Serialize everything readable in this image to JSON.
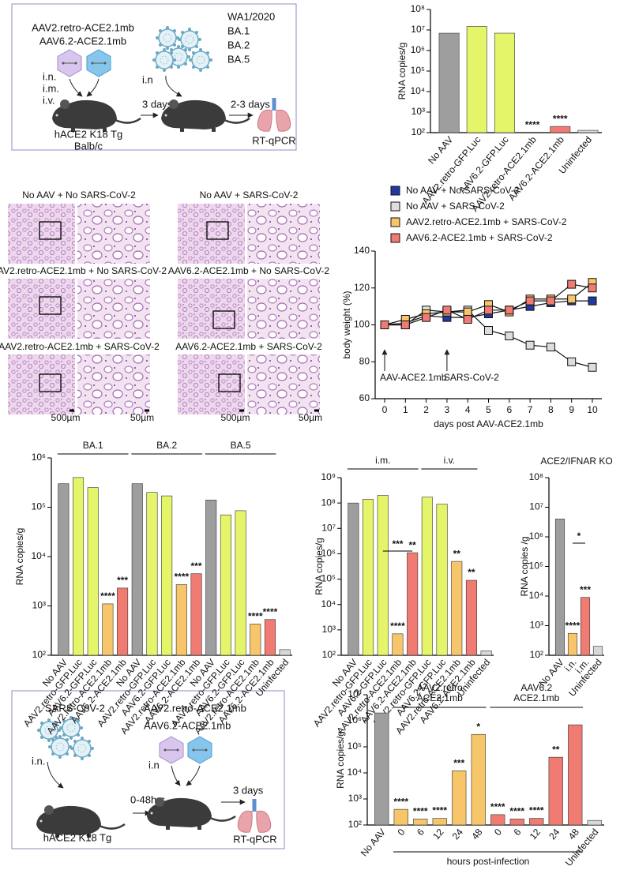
{
  "schematic_a": {
    "vectors": [
      "AAV2.retro-ACE2.1mb",
      "AAV6.2-ACE2.1mb"
    ],
    "routes": [
      "i.n.",
      "i.m.",
      "i.v."
    ],
    "challenge_route": "i.n",
    "variants": [
      "WA1/2020",
      "BA.1",
      "BA.2",
      "BA.5"
    ],
    "interval_1": "3 days",
    "interval_2": "2-3 days",
    "mouse": [
      "hACE2 K18 Tg",
      "Balb/c"
    ],
    "readout": "RT-qPCR"
  },
  "histology": {
    "panels": [
      "No AAV + No SARS-CoV-2",
      "No AAV + SARS-CoV-2",
      "AAV2.retro-ACE2.1mb + No SARS-CoV-2",
      "AAV6.2-ACE2.1mb + No SARS-CoV-2",
      "AAV2.retro-ACE2.1mb + SARS-CoV-2",
      "AAV6.2-ACE2.1mb + SARS-CoV-2"
    ],
    "scale_bars": [
      "500µm",
      "50µm",
      "500µm",
      "50µm"
    ]
  },
  "schematic_g": {
    "virus": "SARS-CoV-2",
    "route_1": "i.n.",
    "vectors": [
      "AAV2.retro-ACE2.1mb",
      "AAV6.2-ACE2.1mb"
    ],
    "route_2": "i.n",
    "interval_1": "0-48hrs",
    "interval_2": "3 days",
    "mouse": "hACE2 K18 Tg",
    "readout": "RT-qPCR"
  },
  "chart_data": [
    {
      "type": "bar",
      "ylabel": "RNA copies/g",
      "log_scale": true,
      "categories": [
        "No AAV",
        "AAV2.retro-GFP.Luc",
        "AAV6.2-GFP.Luc",
        "AAV2.retro-ACE2.1mb",
        "AAV6.2-ACE2.1mb",
        "Uninfected"
      ],
      "values": [
        7000000,
        15000000,
        7000000,
        100,
        200,
        130
      ],
      "colors": [
        "#9e9e9e",
        "#e4f56a",
        "#e4f56a",
        "#f7c56a",
        "#ef7b73",
        "#d8d8d8"
      ],
      "significance": [
        null,
        null,
        null,
        "****",
        "****",
        null
      ],
      "ylim": [
        100,
        100000000
      ],
      "yticks": [
        {
          "value": 100,
          "label": "10²"
        },
        {
          "value": 1000,
          "label": "10³"
        },
        {
          "value": 10000,
          "label": "10⁴"
        },
        {
          "value": 100000,
          "label": "10⁵"
        },
        {
          "value": 1000000,
          "label": "10⁶"
        },
        {
          "value": 10000000,
          "label": "10⁷"
        },
        {
          "value": 100000000,
          "label": "10⁸"
        }
      ]
    },
    {
      "type": "line",
      "xlabel": "days post AAV-ACE2.1mb",
      "ylabel": "body weight (%)",
      "x": [
        0,
        1,
        2,
        3,
        4,
        5,
        6,
        7,
        8,
        9,
        10
      ],
      "series": [
        {
          "name": "No AAV + No SARS-CoV-2",
          "color": "#1f3aa0",
          "values": [
            100,
            101,
            105,
            104,
            104,
            106,
            108,
            110,
            112,
            113,
            113
          ]
        },
        {
          "name": "No AAV + SARS-CoV-2",
          "color": "#dddddd",
          "values": [
            100,
            100,
            108,
            107,
            108,
            97,
            94,
            89,
            88,
            80,
            77
          ]
        },
        {
          "name": "AAV2.retro-ACE2.1mb + SARS-CoV-2",
          "color": "#f7c56a",
          "values": [
            100,
            103,
            106,
            107,
            107,
            111,
            107,
            114,
            114,
            114,
            123
          ]
        },
        {
          "name": "AAV6.2-ACE2.1mb + SARS-CoV-2",
          "color": "#ef7b73",
          "values": [
            100,
            100,
            104,
            108,
            103,
            108,
            108,
            113,
            113,
            122,
            120
          ]
        }
      ],
      "annotations": [
        {
          "text": "AAV-ACE2.1mb",
          "x": 0
        },
        {
          "text": "SARS-CoV-2",
          "x": 3
        }
      ],
      "xlim": [
        0,
        10
      ],
      "xticks": [
        0,
        1,
        2,
        3,
        4,
        5,
        6,
        7,
        8,
        9,
        10
      ],
      "ylim": [
        60,
        140
      ],
      "yticks": [
        60,
        80,
        100,
        120,
        140
      ]
    },
    {
      "type": "bar",
      "ylabel": "RNA copies/g",
      "log_scale": true,
      "groups": [
        "BA.1",
        "BA.2",
        "BA.5"
      ],
      "categories": [
        "No AAV",
        "AAV2.retro-GFP.Luc",
        "AAV6.2-GFP.Luc",
        "AAV2.retro-ACE2.1mb",
        "AAV6.2-ACE2.1mb",
        "No AAV",
        "AAV2.retro-GFP.Luc",
        "AAV6.2-GFP.Luc",
        "AAV2.retro-ACE2.1mb",
        "AAV6.2-ACE2.1mb",
        "No AAV",
        "AAV2.retro-GFP.Luc",
        "AAV6.2-GFP.Luc",
        "AAV2.retro-ACE2.1mb",
        "AAV6.2-ACE2.1mb",
        "Uninfected"
      ],
      "values": [
        300000,
        400000,
        250000,
        1100,
        2300,
        300000,
        200000,
        170000,
        2700,
        4500,
        140000,
        70000,
        85000,
        430,
        530,
        130
      ],
      "colors": [
        "#9e9e9e",
        "#e4f56a",
        "#e4f56a",
        "#f7c56a",
        "#ef7b73",
        "#9e9e9e",
        "#e4f56a",
        "#e4f56a",
        "#f7c56a",
        "#ef7b73",
        "#9e9e9e",
        "#e4f56a",
        "#e4f56a",
        "#f7c56a",
        "#ef7b73",
        "#d8d8d8"
      ],
      "significance": [
        null,
        null,
        null,
        "****",
        "***",
        null,
        null,
        null,
        "****",
        "***",
        null,
        null,
        null,
        "****",
        "****",
        null
      ],
      "ylim": [
        100,
        1000000
      ],
      "yticks": [
        {
          "value": 100,
          "label": "10²"
        },
        {
          "value": 1000,
          "label": "10³"
        },
        {
          "value": 10000,
          "label": "10⁴"
        },
        {
          "value": 100000,
          "label": "10⁵"
        },
        {
          "value": 1000000,
          "label": "10⁶"
        }
      ]
    },
    {
      "type": "bar",
      "ylabel": "RNA copies/g",
      "log_scale": true,
      "groups": [
        "i.m.",
        "i.v."
      ],
      "categories": [
        "No AAV",
        "AAV2.retro-GFP.Luc",
        "AAV6.2-GFP.Luc",
        "AAV2.retro-ACE2.1mb",
        "AAV6.2-ACE2.1mb",
        "AAV2.retro-GFP.Luc",
        "AAV6.2-GFP.Luc",
        "AAV2.retro-ACE2.1mb",
        "AAV6.2-ACE2.1mb",
        "Uninfected"
      ],
      "values": [
        100000000,
        140000000,
        200000000,
        700,
        1100000,
        170000000,
        90000000,
        500000,
        90000,
        150
      ],
      "colors": [
        "#9e9e9e",
        "#e4f56a",
        "#e4f56a",
        "#f7c56a",
        "#ef7b73",
        "#e4f56a",
        "#e4f56a",
        "#f7c56a",
        "#ef7b73",
        "#d8d8d8"
      ],
      "significance": [
        null,
        null,
        null,
        "****",
        "**",
        null,
        null,
        "**",
        "**",
        null
      ],
      "annotations": [
        {
          "text": "***"
        }
      ],
      "ylim": [
        100,
        1000000000
      ],
      "yticks": [
        {
          "value": 100,
          "label": "10²"
        },
        {
          "value": 1000,
          "label": "10³"
        },
        {
          "value": 10000,
          "label": "10⁴"
        },
        {
          "value": 100000,
          "label": "10⁵"
        },
        {
          "value": 1000000,
          "label": "10⁶"
        },
        {
          "value": 10000000,
          "label": "10⁷"
        },
        {
          "value": 100000000,
          "label": "10⁸"
        },
        {
          "value": 1000000000,
          "label": "10⁹"
        }
      ]
    },
    {
      "type": "bar",
      "title": "ACE2/IFNAR KO",
      "ylabel": "RNA copies /g",
      "log_scale": true,
      "categories": [
        "No AAV",
        "i.n.",
        "i.m.",
        "Uninfected"
      ],
      "values": [
        4000000,
        550,
        9000,
        200
      ],
      "colors": [
        "#9e9e9e",
        "#f7c56a",
        "#ef7b73",
        "#d8d8d8"
      ],
      "significance": [
        null,
        "****",
        "***",
        null
      ],
      "annotations": [
        {
          "text": "*"
        }
      ],
      "ylim": [
        100,
        100000000
      ],
      "yticks": [
        {
          "value": 100,
          "label": "10²"
        },
        {
          "value": 1000,
          "label": "10³"
        },
        {
          "value": 10000,
          "label": "10⁴"
        },
        {
          "value": 100000,
          "label": "10⁵"
        },
        {
          "value": 1000000,
          "label": "10⁶"
        },
        {
          "value": 10000000,
          "label": "10⁷"
        },
        {
          "value": 100000000,
          "label": "10⁸"
        }
      ]
    },
    {
      "type": "bar",
      "ylabel": "RNA copies/g",
      "xlabel": "hours post-infection",
      "log_scale": true,
      "groups": [
        [
          "AAV2.retro",
          "ACE2.1mb"
        ],
        [
          "AAV6.2",
          "ACE2.1mb"
        ]
      ],
      "categories": [
        "No AAV",
        "0",
        "6",
        "12",
        "24",
        "48",
        "0",
        "6",
        "12",
        "24",
        "48",
        "Uninfected"
      ],
      "values": [
        2000000,
        400,
        170,
        180,
        12000,
        300000,
        250,
        170,
        180,
        40000,
        700000,
        150
      ],
      "colors": [
        "#9e9e9e",
        "#f7c56a",
        "#f7c56a",
        "#f7c56a",
        "#f7c56a",
        "#f7c56a",
        "#ef7b73",
        "#ef7b73",
        "#ef7b73",
        "#ef7b73",
        "#ef7b73",
        "#d8d8d8"
      ],
      "significance": [
        null,
        "****",
        "****",
        "****",
        "***",
        "*",
        "****",
        "****",
        "****",
        "**",
        null,
        null
      ],
      "ylim": [
        100,
        10000000
      ],
      "yticks": [
        {
          "value": 100,
          "label": "10²"
        },
        {
          "value": 1000,
          "label": "10³"
        },
        {
          "value": 10000,
          "label": "10⁴"
        },
        {
          "value": 100000,
          "label": "10⁵"
        },
        {
          "value": 1000000,
          "label": "10⁶"
        },
        {
          "value": 10000000,
          "label": "10⁷"
        }
      ]
    }
  ]
}
